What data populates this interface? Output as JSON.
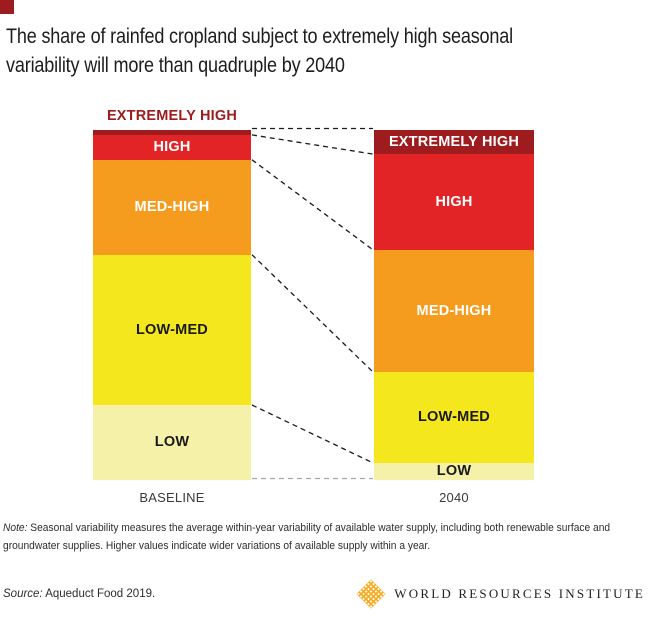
{
  "brand": {
    "mark_color": "#9E1B1E"
  },
  "header": {
    "title_lines": [
      "The share of rainfed cropland subject to extremely high seasonal",
      "variability will more than quadruple by 2040"
    ]
  },
  "chart_data": {
    "type": "bar",
    "subtype": "100pct-stacked-columns-with-connectors",
    "title": "The share of rainfed cropland subject to extremely high seasonal variability will more than quadruple by 2040",
    "categories": [
      "BASELINE",
      "2040"
    ],
    "levels": [
      {
        "name": "EXTREMELY HIGH",
        "color": "#9E1B1E",
        "text_color": "#FFFFFF"
      },
      {
        "name": "HIGH",
        "color": "#E32427",
        "text_color": "#FFFFFF"
      },
      {
        "name": "MED-HIGH",
        "color": "#F59C1F",
        "text_color": "#FFFFFF"
      },
      {
        "name": "LOW-MED",
        "color": "#F5E71E",
        "text_color": "#1A1A1A"
      },
      {
        "name": "LOW",
        "color": "#F5F1A9",
        "text_color": "#1A1A1A"
      }
    ],
    "series": [
      {
        "name": "BASELINE",
        "values_pct": [
          1.4,
          7.1,
          27.1,
          42.9,
          21.4
        ]
      },
      {
        "name": "2040",
        "values_pct": [
          6.9,
          27.4,
          34.9,
          26.0,
          4.9
        ]
      }
    ],
    "legend_position": "labels-on-bars",
    "connector_style": "dashed",
    "connector_color": "#1A1A1A",
    "connector_bottom_color": "#A9A9A9"
  },
  "footer": {
    "note_prefix": "Note:",
    "note_line1": " Seasonal variability measures the average within-year variability of available water supply, including both renewable surface and",
    "note_line2": "groundwater supplies. Higher values indicate wider variations of available supply within a year.",
    "source_prefix": "Source:",
    "source_text": " Aqueduct Food 2019.",
    "logo_text": "WORLD RESOURCES INSTITUTE",
    "logo_color": "#F7A81B"
  }
}
